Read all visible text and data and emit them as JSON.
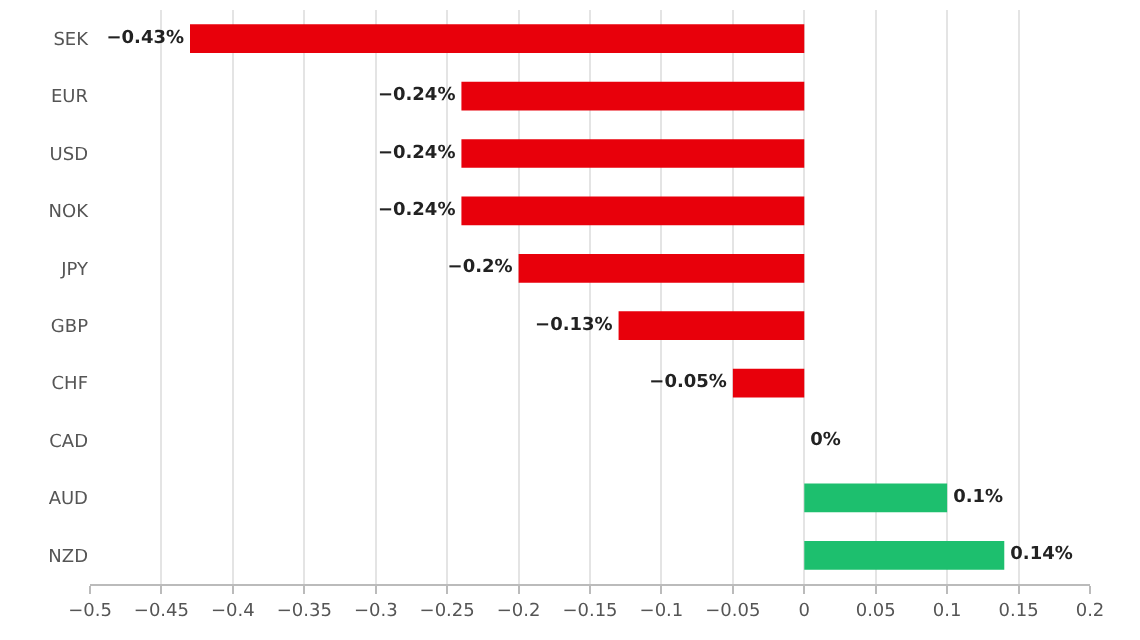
{
  "chart_data": {
    "type": "bar",
    "orientation": "horizontal",
    "categories": [
      "SEK",
      "EUR",
      "USD",
      "NOK",
      "JPY",
      "GBP",
      "CHF",
      "CAD",
      "AUD",
      "NZD"
    ],
    "values": [
      -0.43,
      -0.24,
      -0.24,
      -0.24,
      -0.2,
      -0.13,
      -0.05,
      0,
      0.1,
      0.14
    ],
    "colors": [
      "#e8000b",
      "#e8000b",
      "#e8000b",
      "#e8000b",
      "#e8000b",
      "#e8000b",
      "#e8000b",
      "#e8000b",
      "#1dbf6e",
      "#1dbf6e"
    ],
    "value_labels": [
      "−0.43%",
      "−0.24%",
      "−0.24%",
      "−0.24%",
      "−0.2%",
      "−0.13%",
      "−0.05%",
      "0%",
      "0.1%",
      "0.14%"
    ],
    "xlim": [
      -0.5,
      0.2
    ],
    "xticks": [
      {
        "value": -0.5,
        "label": "−0.5"
      },
      {
        "value": -0.45,
        "label": "−0.45"
      },
      {
        "value": -0.4,
        "label": "−0.4"
      },
      {
        "value": -0.35,
        "label": "−0.35"
      },
      {
        "value": -0.3,
        "label": "−0.3"
      },
      {
        "value": -0.25,
        "label": "−0.25"
      },
      {
        "value": -0.2,
        "label": "−0.2"
      },
      {
        "value": -0.15,
        "label": "−0.15"
      },
      {
        "value": -0.1,
        "label": "−0.1"
      },
      {
        "value": -0.05,
        "label": "−0.05"
      },
      0,
      0.05,
      0.1,
      0.15,
      0.2
    ],
    "grid": "x"
  }
}
